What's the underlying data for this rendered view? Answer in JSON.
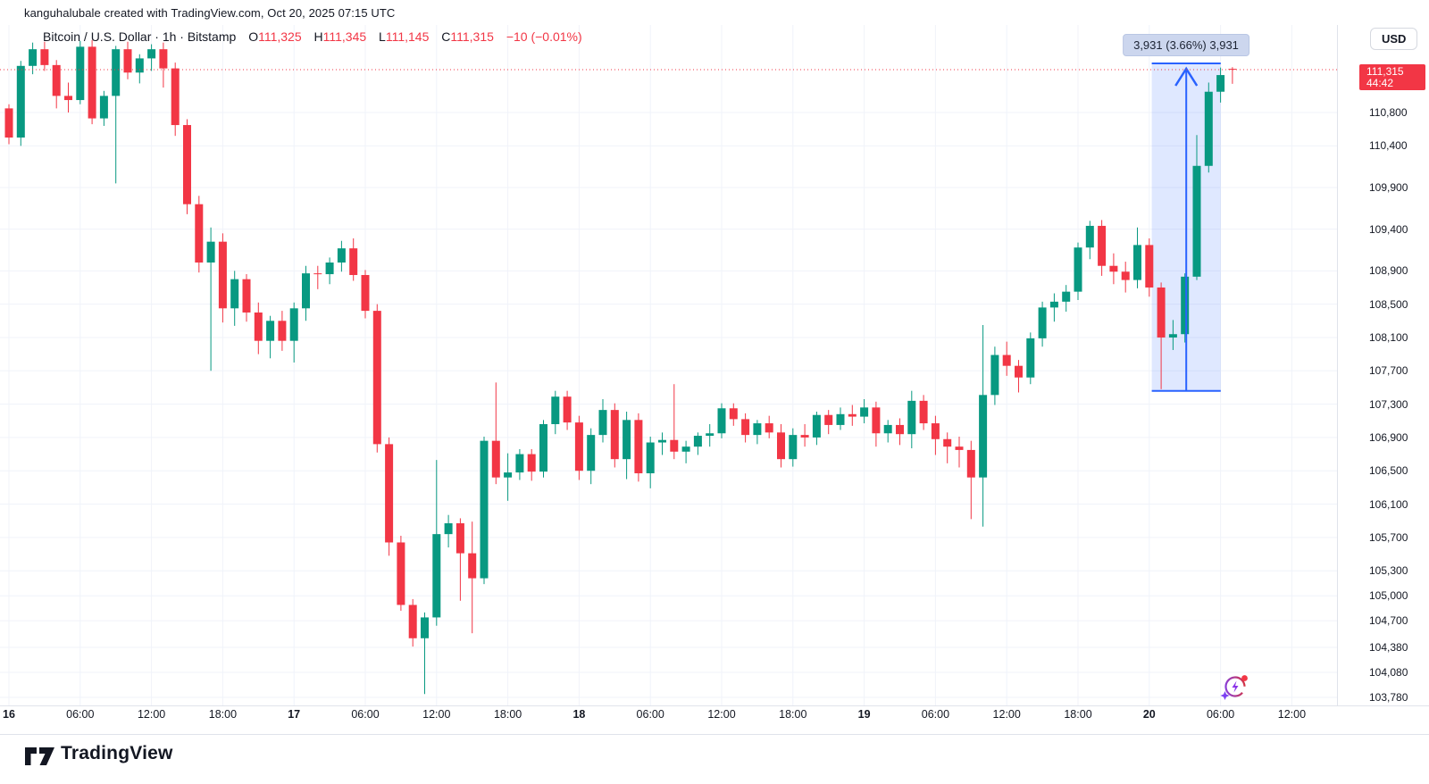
{
  "attribution": "kanguhalubale created with TradingView.com, Oct 20, 2025 07:15 UTC",
  "symbol_header": {
    "title": "Bitcoin / U.S. Dollar · 1h · Bitstamp",
    "o_label": "O",
    "o_value": "111,325",
    "h_label": "H",
    "h_value": "111,345",
    "l_label": "L",
    "l_value": "111,145",
    "c_label": "C",
    "c_value": "111,315",
    "change": "−10 (−0.01%)"
  },
  "currency_button": "USD",
  "price_badge": {
    "price": "111,315",
    "countdown": "44:42"
  },
  "measure_tool": {
    "label": "3,931 (3.66%) 3,931"
  },
  "footer": {
    "brand": "TradingView"
  },
  "chart_data": {
    "type": "candlestick",
    "title": "Bitcoin / U.S. Dollar 1h Bitstamp",
    "current_price": 111315,
    "colors": {
      "up": "#089981",
      "down": "#F23645",
      "grid": "#f0f3fa",
      "axis_border": "#e0e3eb",
      "measure_line": "#2962FF",
      "measure_fill": "rgba(41,98,255,0.15)",
      "price_line": "#F23645"
    },
    "y_axis_ticks": [
      {
        "label": "110,800",
        "price": 110800
      },
      {
        "label": "110,400",
        "price": 110400
      },
      {
        "label": "109,900",
        "price": 109900
      },
      {
        "label": "109,400",
        "price": 109400
      },
      {
        "label": "108,900",
        "price": 108900
      },
      {
        "label": "108,500",
        "price": 108500
      },
      {
        "label": "108,100",
        "price": 108100
      },
      {
        "label": "107,700",
        "price": 107700
      },
      {
        "label": "107,300",
        "price": 107300
      },
      {
        "label": "106,900",
        "price": 106900
      },
      {
        "label": "106,500",
        "price": 106500
      },
      {
        "label": "106,100",
        "price": 106100
      },
      {
        "label": "105,700",
        "price": 105700
      },
      {
        "label": "105,300",
        "price": 105300
      },
      {
        "label": "105,000",
        "price": 105000
      },
      {
        "label": "104,700",
        "price": 104700
      },
      {
        "label": "104,380",
        "price": 104380
      },
      {
        "label": "104,080",
        "price": 104080
      },
      {
        "label": "103,780",
        "price": 103780
      }
    ],
    "x_axis_labels": [
      {
        "index": 0,
        "label": "16",
        "bold": true
      },
      {
        "index": 6,
        "label": "06:00",
        "bold": false
      },
      {
        "index": 12,
        "label": "12:00",
        "bold": false
      },
      {
        "index": 18,
        "label": "18:00",
        "bold": false
      },
      {
        "index": 24,
        "label": "17",
        "bold": true
      },
      {
        "index": 30,
        "label": "06:00",
        "bold": false
      },
      {
        "index": 36,
        "label": "12:00",
        "bold": false
      },
      {
        "index": 42,
        "label": "18:00",
        "bold": false
      },
      {
        "index": 48,
        "label": "18",
        "bold": true
      },
      {
        "index": 54,
        "label": "06:00",
        "bold": false
      },
      {
        "index": 60,
        "label": "12:00",
        "bold": false
      },
      {
        "index": 66,
        "label": "18:00",
        "bold": false
      },
      {
        "index": 72,
        "label": "19",
        "bold": true
      },
      {
        "index": 78,
        "label": "06:00",
        "bold": false
      },
      {
        "index": 84,
        "label": "12:00",
        "bold": false
      },
      {
        "index": 90,
        "label": "18:00",
        "bold": false
      },
      {
        "index": 96,
        "label": "20",
        "bold": true
      },
      {
        "index": 102,
        "label": "06:00",
        "bold": false
      },
      {
        "index": 108,
        "label": "12:00",
        "bold": false
      }
    ],
    "measure_region": {
      "from_index": 97,
      "to_index": 101,
      "price_top": 111390,
      "price_bottom": 107459
    },
    "candles": [
      [
        110850,
        110900,
        110420,
        110500
      ],
      [
        110500,
        111420,
        110400,
        111360
      ],
      [
        111360,
        111640,
        111260,
        111560
      ],
      [
        111560,
        111650,
        111300,
        111370
      ],
      [
        111370,
        111430,
        110850,
        111000
      ],
      [
        111000,
        111160,
        110800,
        110950
      ],
      [
        110950,
        111660,
        110900,
        111590
      ],
      [
        111590,
        111670,
        110660,
        110730
      ],
      [
        110730,
        111060,
        110640,
        111000
      ],
      [
        111000,
        111600,
        109950,
        111560
      ],
      [
        111560,
        111650,
        111200,
        111280
      ],
      [
        111280,
        111500,
        111150,
        111450
      ],
      [
        111450,
        111620,
        111300,
        111560
      ],
      [
        111560,
        111640,
        111100,
        111330
      ],
      [
        111330,
        111400,
        110520,
        110650
      ],
      [
        110650,
        110720,
        109580,
        109700
      ],
      [
        109700,
        109800,
        108880,
        109000
      ],
      [
        109000,
        109420,
        107700,
        109250
      ],
      [
        109250,
        109350,
        108280,
        108450
      ],
      [
        108450,
        108900,
        108240,
        108800
      ],
      [
        108800,
        108860,
        108290,
        108400
      ],
      [
        108400,
        108520,
        107900,
        108060
      ],
      [
        108060,
        108360,
        107850,
        108300
      ],
      [
        108300,
        108420,
        107940,
        108060
      ],
      [
        108060,
        108520,
        107800,
        108450
      ],
      [
        108450,
        108960,
        108300,
        108870
      ],
      [
        108870,
        108960,
        108680,
        108860
      ],
      [
        108860,
        109060,
        108740,
        109000
      ],
      [
        109000,
        109260,
        108890,
        109170
      ],
      [
        109170,
        109290,
        108780,
        108850
      ],
      [
        108850,
        108910,
        108330,
        108420
      ],
      [
        108420,
        108500,
        106720,
        106820
      ],
      [
        106820,
        106900,
        105480,
        105640
      ],
      [
        105640,
        105720,
        104820,
        104890
      ],
      [
        104890,
        104960,
        104390,
        104490
      ],
      [
        104490,
        104800,
        103820,
        104740
      ],
      [
        104740,
        106630,
        104640,
        105740
      ],
      [
        105740,
        105970,
        105580,
        105870
      ],
      [
        105870,
        105930,
        104940,
        105510
      ],
      [
        105510,
        105890,
        104550,
        105210
      ],
      [
        105210,
        106910,
        105140,
        106860
      ],
      [
        106860,
        107560,
        106340,
        106420
      ],
      [
        106420,
        106710,
        106140,
        106480
      ],
      [
        106480,
        106760,
        106390,
        106700
      ],
      [
        106700,
        106760,
        106380,
        106490
      ],
      [
        106490,
        107110,
        106420,
        107060
      ],
      [
        107060,
        107460,
        106940,
        107390
      ],
      [
        107390,
        107460,
        106990,
        107080
      ],
      [
        107080,
        107160,
        106390,
        106500
      ],
      [
        106500,
        107010,
        106340,
        106930
      ],
      [
        106930,
        107360,
        106840,
        107230
      ],
      [
        107230,
        107310,
        106540,
        106640
      ],
      [
        106640,
        107210,
        106400,
        107110
      ],
      [
        107110,
        107190,
        106370,
        106470
      ],
      [
        106470,
        106910,
        106290,
        106840
      ],
      [
        106840,
        106960,
        106690,
        106870
      ],
      [
        106870,
        107540,
        106640,
        106730
      ],
      [
        106730,
        106860,
        106590,
        106790
      ],
      [
        106790,
        106960,
        106690,
        106920
      ],
      [
        106920,
        107060,
        106790,
        106950
      ],
      [
        106950,
        107310,
        106890,
        107250
      ],
      [
        107250,
        107310,
        107040,
        107120
      ],
      [
        107120,
        107190,
        106840,
        106930
      ],
      [
        106930,
        107110,
        106820,
        107070
      ],
      [
        107070,
        107160,
        106890,
        106960
      ],
      [
        106960,
        107060,
        106540,
        106640
      ],
      [
        106640,
        107010,
        106550,
        106930
      ],
      [
        106930,
        107060,
        106790,
        106900
      ],
      [
        106900,
        107210,
        106810,
        107170
      ],
      [
        107170,
        107230,
        106940,
        107050
      ],
      [
        107050,
        107260,
        106990,
        107180
      ],
      [
        107180,
        107290,
        107040,
        107150
      ],
      [
        107150,
        107360,
        107070,
        107260
      ],
      [
        107260,
        107330,
        106790,
        106950
      ],
      [
        106950,
        107110,
        106840,
        107050
      ],
      [
        107050,
        107130,
        106810,
        106940
      ],
      [
        106940,
        107460,
        106770,
        107340
      ],
      [
        107340,
        107410,
        106990,
        107070
      ],
      [
        107070,
        107160,
        106690,
        106880
      ],
      [
        106880,
        106960,
        106590,
        106790
      ],
      [
        106790,
        106910,
        106540,
        106750
      ],
      [
        106750,
        106860,
        105920,
        106420
      ],
      [
        106420,
        108250,
        105830,
        107410
      ],
      [
        107410,
        107990,
        107290,
        107890
      ],
      [
        107890,
        108050,
        107640,
        107760
      ],
      [
        107760,
        107830,
        107440,
        107620
      ],
      [
        107620,
        108160,
        107540,
        108090
      ],
      [
        108090,
        108530,
        107990,
        108460
      ],
      [
        108460,
        108630,
        108290,
        108530
      ],
      [
        108530,
        108730,
        108410,
        108650
      ],
      [
        108650,
        109240,
        108550,
        109180
      ],
      [
        109180,
        109500,
        109040,
        109440
      ],
      [
        109440,
        109510,
        108840,
        108960
      ],
      [
        108960,
        109110,
        108740,
        108890
      ],
      [
        108890,
        109010,
        108640,
        108790
      ],
      [
        108790,
        109420,
        108690,
        109210
      ],
      [
        109210,
        109290,
        108590,
        108700
      ],
      [
        108700,
        108760,
        107480,
        108100
      ],
      [
        108100,
        108310,
        107950,
        108140
      ],
      [
        108140,
        108870,
        108040,
        108830
      ],
      [
        108830,
        110530,
        108790,
        110160
      ],
      [
        110160,
        111160,
        110080,
        111050
      ],
      [
        111050,
        111340,
        110920,
        111250
      ],
      [
        111325,
        111345,
        111145,
        111315
      ]
    ]
  }
}
